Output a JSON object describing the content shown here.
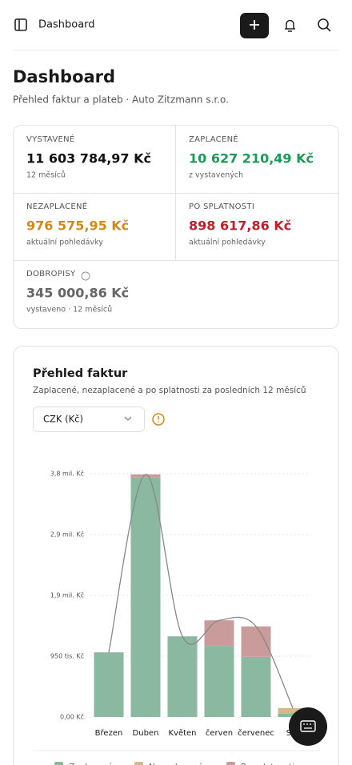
{
  "header": {
    "title": "Dashboard"
  },
  "page": {
    "title": "Dashboard",
    "subtitle": "Přehled faktur a plateb · Auto Zitzmann s.r.o."
  },
  "stats": [
    {
      "label": "VYSTAVENÉ",
      "value": "11 603 784,97 Kč",
      "note": "12 měsíců"
    },
    {
      "label": "ZAPLACENÉ",
      "value": "10 627 210,49 Kč",
      "note": "z vystavených"
    },
    {
      "label": "NEZAPLACENÉ",
      "value": "976 575,95 Kč",
      "note": "aktuální pohledávky"
    },
    {
      "label": "PO SPLATNOSTI",
      "value": "898 617,86 Kč",
      "note": "aktuální pohledávky"
    },
    {
      "label": "DOBROPISY",
      "value": "345 000,86 Kč",
      "note": "vystaveno · 12 měsíců"
    }
  ],
  "chart_data": {
    "type": "bar",
    "stacked": true,
    "title": "Přehled faktur",
    "subtitle": "Zaplacené, nezaplacené a po splatnosti za posledních 12 měsíců",
    "currency_select": "CZK (Kč)",
    "categories": [
      "Březen",
      "Duben",
      "Květen",
      "červen",
      "červenec",
      "Srp"
    ],
    "series": [
      {
        "name": "Zaplacené",
        "color": "#8ab8a0",
        "values": [
          1010000,
          3740000,
          1260000,
          1110000,
          940000,
          50000
        ]
      },
      {
        "name": "Nezaplacené",
        "color": "#d4b98a",
        "values": [
          0,
          0,
          0,
          0,
          0,
          90000
        ]
      },
      {
        "name": "Po splatnosti",
        "color": "#c99b9b",
        "values": [
          0,
          50000,
          0,
          400000,
          475000,
          0
        ]
      }
    ],
    "ylim": [
      0,
      3800000
    ],
    "yticks": [
      {
        "value": 0,
        "label": "0,00 Kč"
      },
      {
        "value": 950000,
        "label": "950 tis. Kč"
      },
      {
        "value": 1900000,
        "label": "1,9 mil. Kč"
      },
      {
        "value": 2850000,
        "label": "2,9 mil. Kč"
      },
      {
        "value": 3800000,
        "label": "3,8 mil. Kč"
      }
    ],
    "grid": true
  }
}
